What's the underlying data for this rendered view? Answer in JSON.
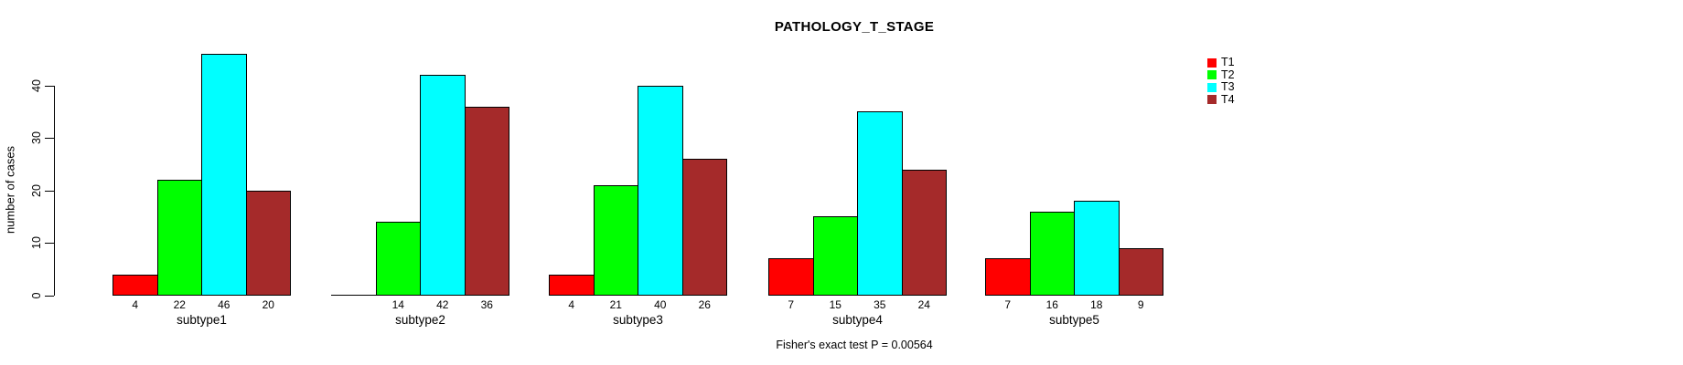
{
  "chart_data": {
    "type": "bar",
    "title": "PATHOLOGY_T_STAGE",
    "ylabel": "number of cases",
    "xlabel": "",
    "annotation": "Fisher's exact test P = 0.00564",
    "categories": [
      "subtype1",
      "subtype2",
      "subtype3",
      "subtype4",
      "subtype5"
    ],
    "series": [
      {
        "name": "T1",
        "color": "#ff0000",
        "values": [
          4,
          0,
          4,
          7,
          7
        ]
      },
      {
        "name": "T2",
        "color": "#00ff00",
        "values": [
          22,
          14,
          21,
          15,
          16
        ]
      },
      {
        "name": "T3",
        "color": "#00ffff",
        "values": [
          46,
          42,
          40,
          35,
          18
        ]
      },
      {
        "name": "T4",
        "color": "#a52a2a",
        "values": [
          20,
          36,
          26,
          24,
          9
        ]
      }
    ],
    "value_labels": [
      [
        "4",
        "22",
        "46",
        "20"
      ],
      [
        "",
        "14",
        "42",
        "36"
      ],
      [
        "4",
        "21",
        "40",
        "26"
      ],
      [
        "7",
        "15",
        "35",
        "24"
      ],
      [
        "7",
        "16",
        "18",
        "9"
      ]
    ],
    "yticks": [
      0,
      10,
      20,
      30,
      40
    ],
    "ylim": [
      0,
      46
    ],
    "grid": false,
    "legend_position": "right"
  }
}
